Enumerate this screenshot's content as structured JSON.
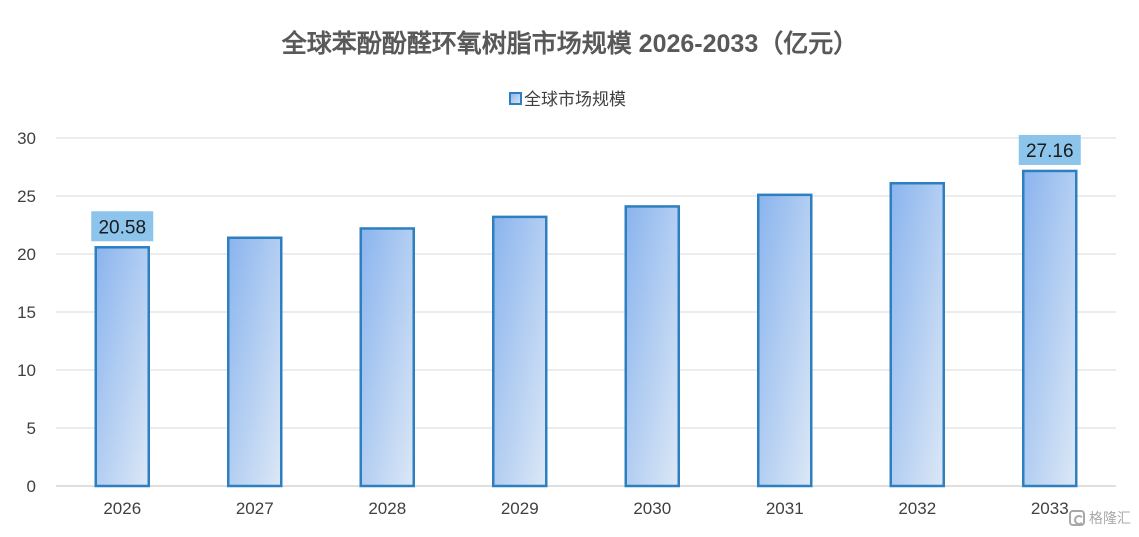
{
  "chart_data": {
    "type": "bar",
    "title": "全球苯酚酚醛环氧树脂市场规模 2026-2033（亿元）",
    "xlabel": "",
    "ylabel": "",
    "categories": [
      "2026",
      "2027",
      "2028",
      "2029",
      "2030",
      "2031",
      "2032",
      "2033"
    ],
    "series": [
      {
        "name": "全球市场规模",
        "values": [
          20.58,
          21.4,
          22.2,
          23.2,
          24.1,
          25.1,
          26.1,
          27.16
        ]
      }
    ],
    "data_labels": [
      {
        "category": "2026",
        "text": "20.58"
      },
      {
        "category": "2033",
        "text": "27.16"
      }
    ],
    "ylim": [
      0,
      30
    ],
    "yticks": [
      0,
      5,
      10,
      15,
      20,
      25,
      30
    ],
    "grid": true,
    "legend_position": "top-center"
  },
  "colors": {
    "bar_gradient_start": "#8ab4ee",
    "bar_gradient_end": "#dce8f6",
    "bar_border": "#2e7fc0",
    "label_box": "#8cc4ec",
    "grid": "#d9d9d9",
    "axis": "#bfbfbf",
    "title": "#595959",
    "tick_text": "#404040"
  },
  "watermark": {
    "text": "格隆汇",
    "icon": "gelonghui-logo-icon"
  }
}
